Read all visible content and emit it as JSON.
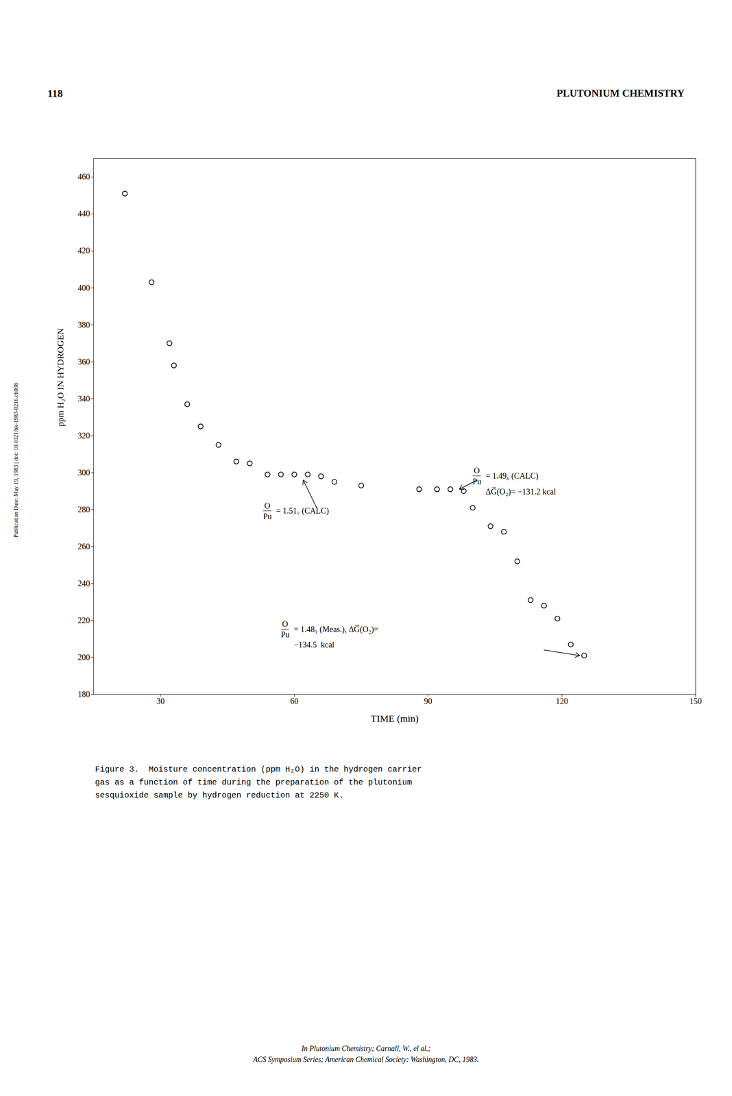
{
  "chart_data": {
    "type": "scatter",
    "page_number": "118",
    "title": "PLUTONIUM CHEMISTRY",
    "xlabel": "TIME (min)",
    "ylabel": "ppm H₂O IN HYDROGEN",
    "x": [
      22,
      28,
      32,
      33,
      36,
      39,
      43,
      47,
      50,
      54,
      57,
      60,
      63,
      66,
      69,
      75,
      88,
      92,
      95,
      98,
      100,
      104,
      107,
      110,
      113,
      116,
      119,
      122,
      125
    ],
    "values": [
      451,
      403,
      370,
      358,
      337,
      325,
      315,
      306,
      305,
      299,
      299,
      299,
      299,
      298,
      295,
      293,
      291,
      291,
      291,
      290,
      281,
      271,
      268,
      252,
      231,
      228,
      221,
      207,
      201
    ],
    "xlim": [
      15,
      150
    ],
    "ylim": [
      180,
      470
    ],
    "xticks": [
      30,
      60,
      90,
      120,
      150
    ],
    "yticks": [
      180,
      200,
      220,
      240,
      260,
      280,
      300,
      320,
      340,
      360,
      380,
      400,
      420,
      440,
      460
    ],
    "grid": false,
    "marker": "circle",
    "color": "#000000",
    "annotations": [
      {
        "numerator": "O",
        "fraction_bar": "—",
        "denominator": "Pu",
        "text": "= 1.51₇ (CALC)",
        "x": 53,
        "y": 279,
        "arrow_from": [
          65,
          281
        ],
        "arrow_to": [
          62,
          296
        ]
      },
      {
        "numerator": "O",
        "fraction_bar": "—",
        "denominator": "Pu",
        "text": "= 1.49₆ (CALC)",
        "text2": "ΔG̅(O₂)= −131.2 kcal",
        "x": 100,
        "y": 298,
        "arrow_from": [
          101,
          296
        ],
        "arrow_to": [
          97,
          291
        ]
      },
      {
        "numerator": "O",
        "fraction_bar": "—",
        "denominator": "Pu",
        "text": "= 1.48₁ (Meas.), ΔG̅(O₂)=",
        "text2": "−134.5  kcal",
        "x": 57,
        "y": 215,
        "arrow_from": [
          116,
          204
        ],
        "arrow_to": [
          124,
          201
        ]
      }
    ],
    "caption": [
      "Figure 3.  Moisture concentration (ppm H₂O) in the hydrogen carrier",
      "gas as a function of time during the preparation of the plutonium",
      "sesquioxide sample by hydrogen reduction at 2250 K."
    ],
    "footer": [
      "In Plutonium Chemistry; Carnall, W., el al.;",
      "ACS Symposium Series; American Chemical Society: Washington, DC, 1983."
    ],
    "sidebar": "Publication Date: May 19, 1983 | doi: 10.1021/bk-1983-0216.ch008"
  }
}
